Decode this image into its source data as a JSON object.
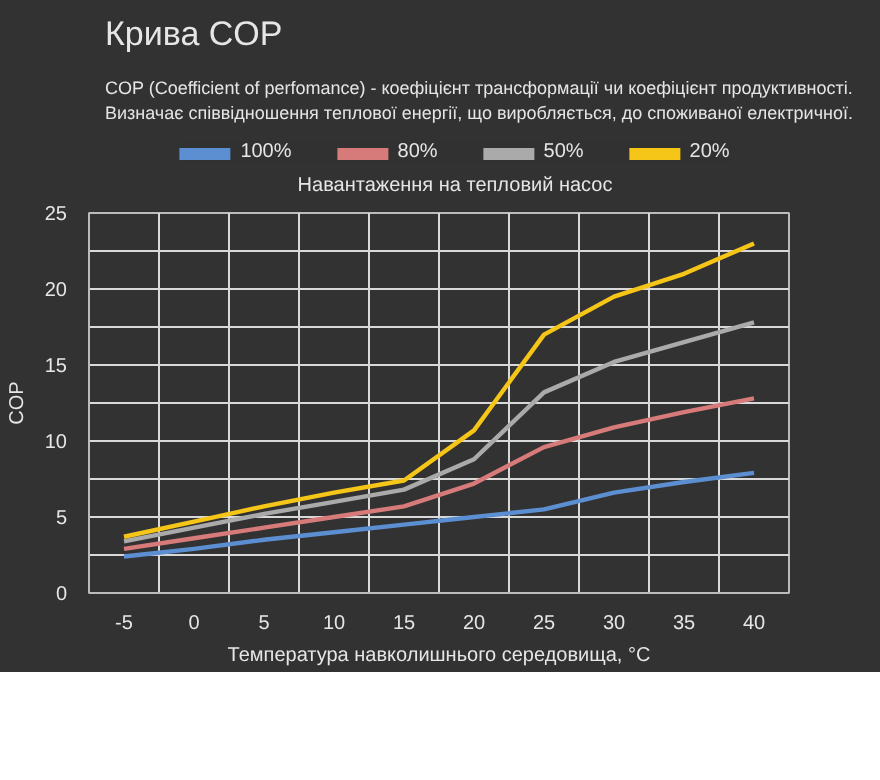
{
  "chart_data": {
    "type": "line",
    "title": "Крива COP",
    "subtitle": "COP (Coefficient of perfomance) - коефіцієнт трансформації чи коефіцієнт продуктивності. Визначає співвідношення теплової енергії, що виробляється, до споживаної електричної.",
    "xlabel": "Температура навколишнього середовища, °C",
    "ylabel": "COP",
    "legend_title": "Навантаження на тепловий насос",
    "legend": "top",
    "grid": true,
    "categories": [
      "-5",
      "0",
      "5",
      "10",
      "15",
      "20",
      "25",
      "30",
      "35",
      "40"
    ],
    "ylim": [
      0,
      25
    ],
    "yticks": [
      0,
      5,
      10,
      15,
      20,
      25
    ],
    "series": [
      {
        "name": "100%",
        "color": "#5b8fd1",
        "values": [
          2.4,
          2.9,
          3.5,
          4.0,
          4.5,
          5.0,
          5.5,
          6.6,
          7.3,
          7.9
        ]
      },
      {
        "name": "80%",
        "color": "#d77a7a",
        "values": [
          2.9,
          3.6,
          4.3,
          5.0,
          5.7,
          7.2,
          9.6,
          10.9,
          11.9,
          12.8
        ]
      },
      {
        "name": "50%",
        "color": "#aaaaaa",
        "values": [
          3.4,
          4.3,
          5.2,
          6.0,
          6.8,
          8.8,
          13.2,
          15.2,
          16.5,
          17.8
        ]
      },
      {
        "name": "20%",
        "color": "#f5c518",
        "values": [
          3.7,
          4.7,
          5.7,
          6.6,
          7.4,
          10.7,
          17.0,
          19.5,
          21.0,
          23.0
        ]
      }
    ]
  }
}
